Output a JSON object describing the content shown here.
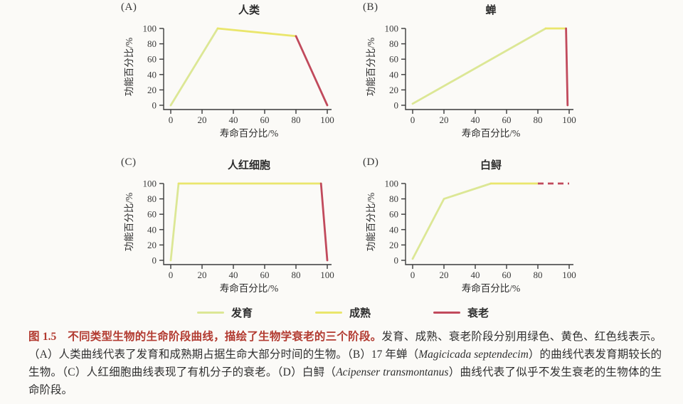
{
  "colors": {
    "development": "#dce795",
    "maturity": "#eae66c",
    "senescence": "#c14a5c",
    "axis": "#3b3b3b",
    "text": "#2f2f2f",
    "caption_highlight": "#b23a30",
    "background": "#fbfaf7"
  },
  "legend": [
    {
      "label": "发育",
      "color_key": "development",
      "style": "solid"
    },
    {
      "label": "成熟",
      "color_key": "maturity",
      "style": "solid"
    },
    {
      "label": "衰老",
      "color_key": "senescence",
      "style": "solid"
    }
  ],
  "chart_data": [
    {
      "type": "line",
      "panel": "(A)",
      "title": "人类",
      "xlabel": "寿命百分比/%",
      "ylabel": "功能百分比/%",
      "xlim": [
        0,
        100
      ],
      "ylim": [
        0,
        100
      ],
      "xticks": [
        0,
        20,
        40,
        60,
        80,
        100
      ],
      "yticks": [
        0,
        20,
        40,
        60,
        80,
        100
      ],
      "grid": false,
      "segments": [
        {
          "name": "发育",
          "color_key": "development",
          "style": "solid",
          "points": [
            [
              0,
              0
            ],
            [
              30,
              100
            ]
          ]
        },
        {
          "name": "成熟",
          "color_key": "maturity",
          "style": "solid",
          "points": [
            [
              30,
              100
            ],
            [
              80,
              90
            ]
          ]
        },
        {
          "name": "衰老",
          "color_key": "senescence",
          "style": "solid",
          "points": [
            [
              80,
              90
            ],
            [
              100,
              0
            ]
          ]
        }
      ]
    },
    {
      "type": "line",
      "panel": "(B)",
      "title": "蝉",
      "xlabel": "寿命百分比/%",
      "ylabel": "功能百分比/%",
      "xlim": [
        0,
        100
      ],
      "ylim": [
        0,
        100
      ],
      "xticks": [
        0,
        20,
        40,
        60,
        80,
        100
      ],
      "yticks": [
        0,
        20,
        40,
        60,
        80,
        100
      ],
      "grid": false,
      "segments": [
        {
          "name": "发育",
          "color_key": "development",
          "style": "solid",
          "points": [
            [
              0,
              2
            ],
            [
              85,
              100
            ]
          ]
        },
        {
          "name": "成熟",
          "color_key": "maturity",
          "style": "solid",
          "points": [
            [
              85,
              100
            ],
            [
              98,
              100
            ]
          ]
        },
        {
          "name": "衰老",
          "color_key": "senescence",
          "style": "solid",
          "points": [
            [
              98,
              100
            ],
            [
              99,
              0
            ]
          ]
        }
      ]
    },
    {
      "type": "line",
      "panel": "(C)",
      "title": "人红细胞",
      "xlabel": "寿命百分比/%",
      "ylabel": "功能百分比/%",
      "xlim": [
        0,
        100
      ],
      "ylim": [
        0,
        100
      ],
      "xticks": [
        0,
        20,
        40,
        60,
        80,
        100
      ],
      "yticks": [
        0,
        20,
        40,
        60,
        80,
        100
      ],
      "grid": false,
      "segments": [
        {
          "name": "发育",
          "color_key": "development",
          "style": "solid",
          "points": [
            [
              0,
              0
            ],
            [
              5,
              100
            ]
          ]
        },
        {
          "name": "成熟",
          "color_key": "maturity",
          "style": "solid",
          "points": [
            [
              5,
              100
            ],
            [
              96,
              100
            ]
          ]
        },
        {
          "name": "衰老",
          "color_key": "senescence",
          "style": "solid",
          "points": [
            [
              96,
              100
            ],
            [
              100,
              0
            ]
          ]
        }
      ]
    },
    {
      "type": "line",
      "panel": "(D)",
      "title": "白鲟",
      "xlabel": "寿命百分比/%",
      "ylabel": "功能百分比/%",
      "xlim": [
        0,
        100
      ],
      "ylim": [
        0,
        100
      ],
      "xticks": [
        0,
        20,
        40,
        60,
        80,
        100
      ],
      "yticks": [
        0,
        20,
        40,
        60,
        80,
        100
      ],
      "grid": false,
      "segments": [
        {
          "name": "发育",
          "color_key": "development",
          "style": "solid",
          "points": [
            [
              0,
              2
            ],
            [
              20,
              80
            ],
            [
              50,
              100
            ]
          ]
        },
        {
          "name": "成熟",
          "color_key": "maturity",
          "style": "solid",
          "points": [
            [
              50,
              100
            ],
            [
              80,
              100
            ]
          ]
        },
        {
          "name": "衰老",
          "color_key": "senescence",
          "style": "dashed",
          "points": [
            [
              80,
              100
            ],
            [
              100,
              100
            ]
          ]
        }
      ]
    }
  ],
  "caption": {
    "segments": [
      {
        "text": "图 1.5　不同类型生物的生命阶段曲线，描绘了生物学衰老的三个阶段。",
        "style": "highlight"
      },
      {
        "text": "发育、成熟、衰老阶段分别用绿色、黄色、红色线表示。（A）人类曲线代表了发育和成熟期占据生命大部分时间的生物。（B）17 年蝉（",
        "style": "normal"
      },
      {
        "text": "Magicicada septendecim",
        "style": "italic"
      },
      {
        "text": "）的曲线代表发育期较长的生物。（C）人红细胞曲线表现了有机分子的衰老。（D）白鲟（",
        "style": "normal"
      },
      {
        "text": "Acipenser transmontanus",
        "style": "italic"
      },
      {
        "text": "）曲线代表了似乎不发生衰老的生物体的生命阶段。",
        "style": "normal"
      }
    ]
  }
}
